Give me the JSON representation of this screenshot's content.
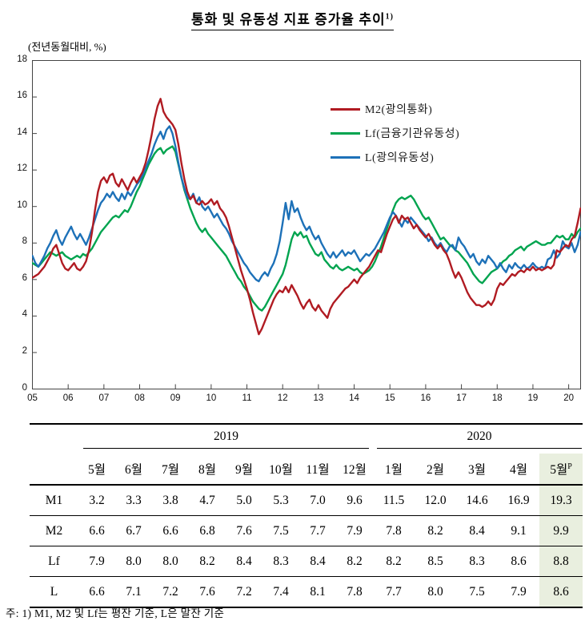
{
  "title": {
    "text": "통화 및 유동성 지표 증가율 추이",
    "footnote_marker": "1)"
  },
  "unit_label": "(전년동월대비, %)",
  "note": {
    "text": "주: 1) M1, M2 및 Lf는 평잔 기준, L은 말잔 기준"
  },
  "colors": {
    "m2": "#b01b22",
    "lf": "#00a44f",
    "l": "#1d71b8",
    "highlight_column_bg": "#e9efdf",
    "plot_border": "#444444"
  },
  "chart_data": {
    "type": "line",
    "period": {
      "start": "2005-01",
      "end": "2020-05",
      "frequency": "monthly"
    },
    "ylim": [
      0,
      18
    ],
    "y_ticks": [
      "0",
      "2",
      "4",
      "6",
      "8",
      "10",
      "12",
      "14",
      "16",
      "18"
    ],
    "x_ticks": [
      "05",
      "06",
      "07",
      "08",
      "09",
      "10",
      "11",
      "12",
      "13",
      "14",
      "15",
      "16",
      "17",
      "18",
      "19",
      "20"
    ],
    "grid": false,
    "legend_position": "upper-right-inside",
    "series": [
      {
        "name": "M2",
        "legend_label": "M2(광의통화)",
        "color": "#b01b22",
        "values": [
          6.1,
          6.2,
          6.3,
          6.5,
          6.7,
          7.0,
          7.3,
          7.7,
          7.9,
          7.4,
          6.9,
          6.6,
          6.5,
          6.7,
          6.9,
          6.6,
          6.5,
          6.7,
          7.0,
          7.6,
          8.6,
          9.8,
          10.8,
          11.4,
          11.6,
          11.3,
          11.7,
          11.8,
          11.3,
          11.1,
          11.5,
          11.2,
          10.9,
          11.3,
          11.6,
          11.3,
          11.6,
          11.9,
          12.4,
          13.1,
          13.9,
          14.8,
          15.5,
          15.9,
          15.2,
          14.9,
          14.7,
          14.5,
          14.2,
          13.4,
          12.4,
          11.5,
          10.8,
          10.4,
          10.6,
          10.2,
          10.1,
          10.3,
          10.1,
          10.2,
          10.4,
          10.1,
          10.3,
          9.9,
          9.7,
          9.4,
          8.9,
          8.3,
          7.7,
          7.1,
          6.5,
          6.0,
          5.5,
          4.9,
          4.2,
          3.6,
          3.0,
          3.3,
          3.7,
          4.1,
          4.5,
          4.9,
          5.2,
          5.4,
          5.3,
          5.6,
          5.3,
          5.7,
          5.4,
          5.1,
          4.7,
          4.4,
          4.7,
          4.9,
          4.5,
          4.3,
          4.6,
          4.3,
          4.1,
          3.9,
          4.4,
          4.7,
          4.9,
          5.1,
          5.3,
          5.5,
          5.6,
          5.8,
          6.0,
          5.8,
          6.1,
          6.3,
          6.5,
          6.7,
          7.0,
          7.3,
          7.6,
          7.5,
          8.0,
          8.5,
          8.9,
          9.3,
          9.5,
          9.1,
          9.5,
          9.3,
          9.4,
          9.1,
          8.8,
          9.0,
          8.7,
          8.5,
          8.3,
          8.5,
          8.2,
          7.9,
          7.7,
          7.9,
          7.6,
          7.4,
          7.0,
          6.5,
          6.1,
          6.4,
          6.1,
          5.7,
          5.3,
          5.0,
          4.8,
          4.6,
          4.6,
          4.5,
          4.6,
          4.8,
          4.6,
          4.9,
          5.5,
          5.8,
          5.7,
          5.9,
          6.1,
          6.3,
          6.2,
          6.4,
          6.5,
          6.4,
          6.6,
          6.5,
          6.7,
          6.5,
          6.6,
          6.5,
          6.6,
          6.7,
          6.6,
          6.8,
          7.6,
          7.5,
          7.7,
          7.9,
          7.8,
          8.2,
          8.4,
          9.1,
          9.9
        ]
      },
      {
        "name": "Lf",
        "legend_label": "Lf(금융기관유동성)",
        "color": "#00a44f",
        "values": [
          6.9,
          6.8,
          6.7,
          6.9,
          7.1,
          7.3,
          7.5,
          7.4,
          7.3,
          7.4,
          7.5,
          7.3,
          7.2,
          7.1,
          7.2,
          7.3,
          7.2,
          7.4,
          7.3,
          7.5,
          7.7,
          8.0,
          8.3,
          8.6,
          8.8,
          9.0,
          9.2,
          9.4,
          9.5,
          9.4,
          9.6,
          9.8,
          9.7,
          10.0,
          10.4,
          10.8,
          11.1,
          11.5,
          11.9,
          12.3,
          12.6,
          12.9,
          13.1,
          13.2,
          12.9,
          13.1,
          13.2,
          13.3,
          13.0,
          12.3,
          11.6,
          10.9,
          10.4,
          9.9,
          9.5,
          9.1,
          8.8,
          8.6,
          8.8,
          8.5,
          8.3,
          8.1,
          7.9,
          7.7,
          7.5,
          7.3,
          7.0,
          6.7,
          6.4,
          6.1,
          5.9,
          5.6,
          5.4,
          5.1,
          4.8,
          4.6,
          4.4,
          4.3,
          4.5,
          4.8,
          5.1,
          5.4,
          5.7,
          6.0,
          6.3,
          6.8,
          7.5,
          8.2,
          8.6,
          8.4,
          8.6,
          8.3,
          8.4,
          8.0,
          7.7,
          7.4,
          7.3,
          7.5,
          7.1,
          6.9,
          6.7,
          6.6,
          6.8,
          6.6,
          6.5,
          6.6,
          6.7,
          6.6,
          6.5,
          6.6,
          6.4,
          6.3,
          6.4,
          6.5,
          6.7,
          7.0,
          7.4,
          7.8,
          8.3,
          8.8,
          9.3,
          9.8,
          10.2,
          10.4,
          10.5,
          10.4,
          10.5,
          10.6,
          10.4,
          10.1,
          9.8,
          9.5,
          9.3,
          9.4,
          9.1,
          8.8,
          8.5,
          8.2,
          8.3,
          8.1,
          7.9,
          7.8,
          7.6,
          7.5,
          7.3,
          7.1,
          6.9,
          6.6,
          6.3,
          6.1,
          5.9,
          5.8,
          6.0,
          6.2,
          6.4,
          6.5,
          6.6,
          6.8,
          7.0,
          7.1,
          7.3,
          7.4,
          7.6,
          7.7,
          7.8,
          7.6,
          7.8,
          7.9,
          8.0,
          8.1,
          8.0,
          7.9,
          7.9,
          8.0,
          8.0,
          8.2,
          8.4,
          8.3,
          8.4,
          8.2,
          8.2,
          8.5,
          8.3,
          8.6,
          8.8
        ]
      },
      {
        "name": "L",
        "legend_label": "L(광의유동성)",
        "color": "#1d71b8",
        "values": [
          7.3,
          6.9,
          6.7,
          7.0,
          7.3,
          7.7,
          8.0,
          8.4,
          8.7,
          8.2,
          7.9,
          8.3,
          8.6,
          8.9,
          8.5,
          8.2,
          8.5,
          8.2,
          7.9,
          8.3,
          8.8,
          9.3,
          9.8,
          10.2,
          10.4,
          10.7,
          10.5,
          10.8,
          10.5,
          10.3,
          10.7,
          10.4,
          10.8,
          10.6,
          10.9,
          11.2,
          11.4,
          11.7,
          12.1,
          12.5,
          12.9,
          13.4,
          13.8,
          14.1,
          13.7,
          14.2,
          14.4,
          14.0,
          13.3,
          12.4,
          11.6,
          11.0,
          10.5,
          10.4,
          10.7,
          10.2,
          10.5,
          10.0,
          9.8,
          10.0,
          9.7,
          9.4,
          9.6,
          9.3,
          9.0,
          8.8,
          8.5,
          8.1,
          7.8,
          7.5,
          7.2,
          6.9,
          6.7,
          6.4,
          6.2,
          6.0,
          5.9,
          6.2,
          6.4,
          6.2,
          6.6,
          6.9,
          7.4,
          8.1,
          9.1,
          10.2,
          9.3,
          10.3,
          9.7,
          9.9,
          9.4,
          9.0,
          8.7,
          8.9,
          8.5,
          8.2,
          8.4,
          8.0,
          7.7,
          7.4,
          7.2,
          7.5,
          7.2,
          7.4,
          7.6,
          7.3,
          7.5,
          7.4,
          7.6,
          7.3,
          7.0,
          7.2,
          7.4,
          7.3,
          7.5,
          7.7,
          8.0,
          8.3,
          8.6,
          9.0,
          9.4,
          9.7,
          9.5,
          9.2,
          8.9,
          9.3,
          9.1,
          9.4,
          9.2,
          9.0,
          8.8,
          8.6,
          8.4,
          8.1,
          8.3,
          8.0,
          7.8,
          8.0,
          7.7,
          7.5,
          7.8,
          7.9,
          7.6,
          8.3,
          8.0,
          7.8,
          7.5,
          7.2,
          7.4,
          7.0,
          6.8,
          7.1,
          6.9,
          7.3,
          7.1,
          6.9,
          6.6,
          6.9,
          6.6,
          6.4,
          6.8,
          6.6,
          6.9,
          6.7,
          6.6,
          6.8,
          6.6,
          6.7,
          6.9,
          6.7,
          6.6,
          6.7,
          6.6,
          7.1,
          7.2,
          7.6,
          7.2,
          7.4,
          8.1,
          7.8,
          7.7,
          8.0,
          7.5,
          7.9,
          8.6
        ]
      }
    ]
  },
  "table": {
    "group_headers": [
      "2019",
      "2020"
    ],
    "months": [
      "5월",
      "6월",
      "7월",
      "8월",
      "9월",
      "10월",
      "11월",
      "12월",
      "1월",
      "2월",
      "3월",
      "4월",
      "5월"
    ],
    "p_superscript": "P",
    "rows": [
      {
        "label": "M1",
        "values": [
          "3.2",
          "3.3",
          "3.8",
          "4.7",
          "5.0",
          "5.3",
          "7.0",
          "9.6",
          "11.5",
          "12.0",
          "14.6",
          "16.9",
          "19.3"
        ]
      },
      {
        "label": "M2",
        "values": [
          "6.6",
          "6.7",
          "6.6",
          "6.8",
          "7.6",
          "7.5",
          "7.7",
          "7.9",
          "7.8",
          "8.2",
          "8.4",
          "9.1",
          "9.9"
        ]
      },
      {
        "label": "Lf",
        "values": [
          "7.9",
          "8.0",
          "8.0",
          "8.2",
          "8.4",
          "8.3",
          "8.4",
          "8.2",
          "8.2",
          "8.5",
          "8.3",
          "8.6",
          "8.8"
        ]
      },
      {
        "label": "L",
        "values": [
          "6.6",
          "7.1",
          "7.2",
          "7.6",
          "7.2",
          "7.4",
          "8.1",
          "7.8",
          "7.7",
          "8.0",
          "7.5",
          "7.9",
          "8.6"
        ]
      }
    ]
  }
}
